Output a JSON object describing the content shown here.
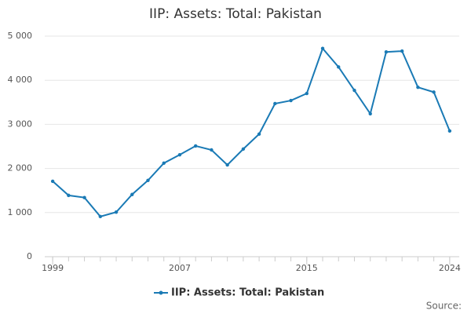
{
  "chart_data": {
    "type": "line",
    "title": "IIP: Assets: Total: Pakistan",
    "x": [
      1999,
      2000,
      2001,
      2002,
      2003,
      2004,
      2005,
      2006,
      2007,
      2008,
      2009,
      2010,
      2011,
      2012,
      2013,
      2014,
      2015,
      2016,
      2017,
      2018,
      2019,
      2020,
      2021,
      2022,
      2023,
      2024
    ],
    "series": [
      {
        "name": "IIP: Assets: Total: Pakistan",
        "color": "#1a7ab5",
        "values": [
          1710,
          1390,
          1340,
          910,
          1010,
          1410,
          1730,
          2120,
          2310,
          2510,
          2420,
          2080,
          2440,
          2780,
          3470,
          3540,
          3700,
          4720,
          4300,
          3770,
          3240,
          4640,
          4660,
          3840,
          3730,
          2850
        ]
      }
    ],
    "xlim": [
      1998.5,
      2024.6
    ],
    "xticks": [
      1999,
      2007,
      2015,
      2024
    ],
    "ylim": [
      0,
      5000
    ],
    "yticks": [
      0,
      {
        "value": 1000,
        "label": "1 000"
      },
      {
        "value": 2000,
        "label": "2 000"
      },
      {
        "value": 3000,
        "label": "3 000"
      },
      {
        "value": 4000,
        "label": "4 000"
      },
      {
        "value": 5000,
        "label": "5 000"
      }
    ],
    "grid": true,
    "legend": "bottom",
    "source": "Source:"
  }
}
